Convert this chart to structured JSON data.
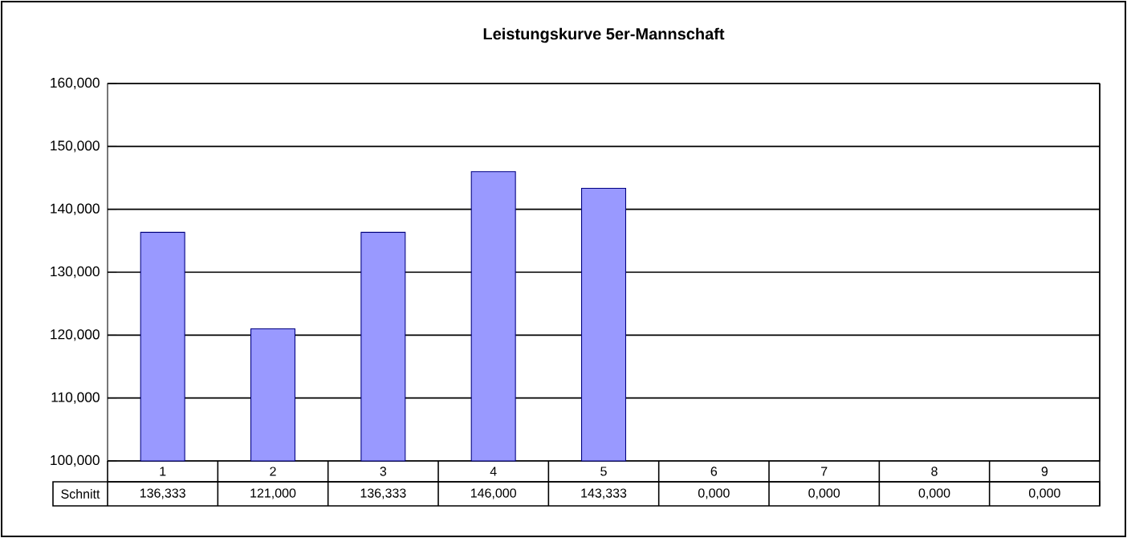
{
  "chart_data": {
    "type": "bar",
    "title": "Leistungskurve 5er-Mannschaft",
    "categories": [
      "1",
      "2",
      "3",
      "4",
      "5",
      "6",
      "7",
      "8",
      "9"
    ],
    "series": [
      {
        "name": "Schnitt",
        "color": "#9999ff",
        "values": [
          136.333,
          121.0,
          136.333,
          146.0,
          143.333,
          null,
          null,
          null,
          null
        ],
        "value_labels": [
          "136,333",
          "121,000",
          "136,333",
          "146,000",
          "143,333",
          "0,000",
          "0,000",
          "0,000",
          "0,000"
        ]
      }
    ],
    "ylim": [
      100,
      160
    ],
    "yticks": [
      {
        "value": 100,
        "label": "100,000"
      },
      {
        "value": 110,
        "label": "110,000"
      },
      {
        "value": 120,
        "label": "120,000"
      },
      {
        "value": 130,
        "label": "130,000"
      },
      {
        "value": 140,
        "label": "140,000"
      },
      {
        "value": 150,
        "label": "150,000"
      },
      {
        "value": 160,
        "label": "160,000"
      }
    ],
    "grid": "y"
  }
}
